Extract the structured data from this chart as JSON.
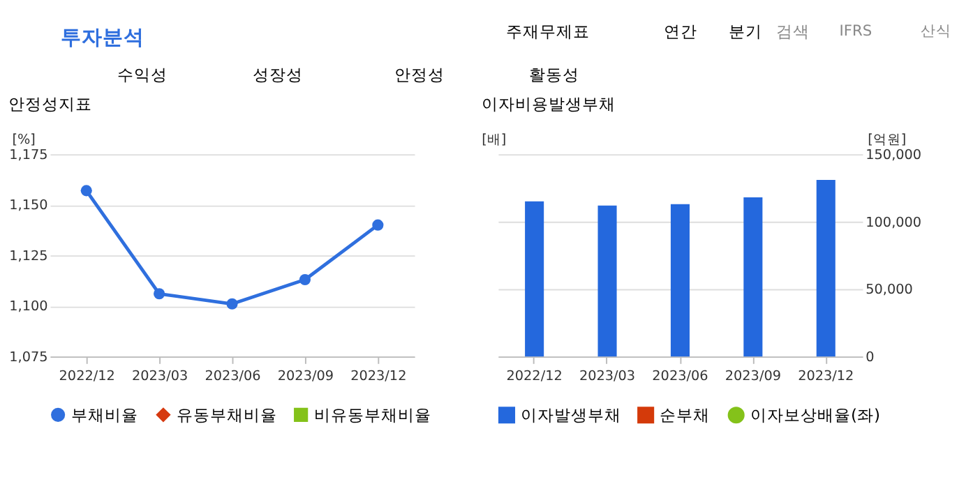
{
  "chart_data": [
    {
      "type": "line",
      "title": "안정성지표",
      "ylabel": "[%]",
      "annotations": [
        "투자분석",
        "주재무제표",
        "연간",
        "분기",
        "검색",
        "IFRS",
        "산식",
        "수익성",
        "성장성",
        "안정성",
        "활동성"
      ],
      "categories": [
        "2022/12",
        "2023/03",
        "2023/06",
        "2023/09",
        "2023/12"
      ],
      "series": [
        {
          "name": "부채비율",
          "color": "#2f6fde",
          "marker": "circle",
          "values": [
            1157,
            1106,
            1101,
            1113,
            1140
          ]
        },
        {
          "name": "유동부채비율",
          "color": "#d63a10",
          "marker": "diamond",
          "values": [
            null,
            null,
            null,
            null,
            null
          ]
        },
        {
          "name": "비유동부채비율",
          "color": "#84c21a",
          "marker": "square",
          "values": [
            null,
            null,
            null,
            null,
            null
          ]
        }
      ],
      "ylim": [
        1075,
        1175
      ],
      "yticks": [
        {
          "value": 1075,
          "label": "1,075"
        },
        {
          "value": 1100,
          "label": "1,100"
        },
        {
          "value": 1125,
          "label": "1,125"
        },
        {
          "value": 1150,
          "label": "1,150"
        },
        {
          "value": 1175,
          "label": "1,175"
        }
      ],
      "grid": "y",
      "legend": "bottom"
    },
    {
      "type": "bar",
      "title": "이자비용발생부채",
      "ylabel": "[배]",
      "y2label": "[억원]",
      "categories": [
        "2022/12",
        "2023/03",
        "2023/06",
        "2023/09",
        "2023/12"
      ],
      "series": [
        {
          "name": "이자발생부채",
          "color": "#2468dd",
          "axis": "y2",
          "values": [
            115000,
            112000,
            113000,
            118000,
            131000
          ]
        },
        {
          "name": "순부채",
          "color": "#d43a0a",
          "axis": "y2",
          "values": [
            null,
            null,
            null,
            null,
            null
          ]
        },
        {
          "name": "이자보상배율(좌)",
          "type": "line",
          "color": "#84c21a",
          "axis": "y",
          "values": [
            null,
            null,
            null,
            null,
            null
          ]
        }
      ],
      "y2lim": [
        0,
        150000
      ],
      "y2ticks": [
        0,
        {
          "value": 50000,
          "label": "50,000"
        },
        {
          "value": 100000,
          "label": "100,000"
        },
        {
          "value": 150000,
          "label": "150,000"
        }
      ],
      "grid": "y",
      "legend": "bottom"
    }
  ]
}
